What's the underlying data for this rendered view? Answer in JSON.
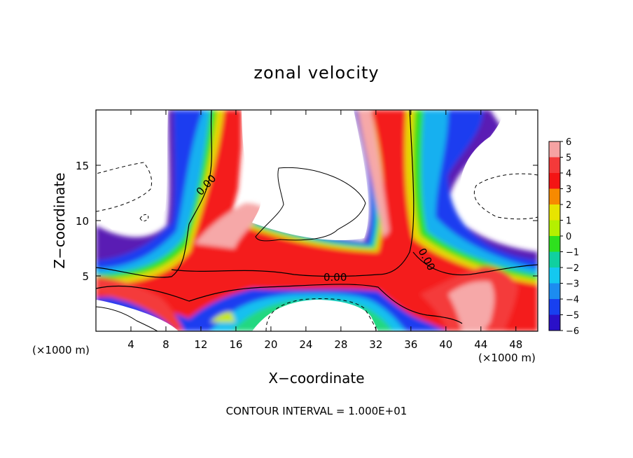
{
  "chart_data": {
    "type": "heatmap",
    "title": "zonal velocity",
    "xlabel": "X−coordinate",
    "ylabel": "Z−coordinate",
    "x_unit_left": "(×1000 m)",
    "x_unit_right": "(×1000 m)",
    "footer": "CONTOUR INTERVAL = 1.000E+01",
    "xlim": [
      0,
      50.5
    ],
    "ylim": [
      0,
      20
    ],
    "x_ticks": [
      4,
      8,
      12,
      16,
      20,
      24,
      28,
      32,
      36,
      40,
      44,
      48
    ],
    "x_tick_labels": [
      "4",
      "8",
      "12",
      "16",
      "20",
      "24",
      "28",
      "32",
      "36",
      "40",
      "44",
      "48"
    ],
    "y_ticks": [
      5,
      10,
      15
    ],
    "y_tick_labels": [
      "5",
      "10",
      "15"
    ],
    "contour_labels": [
      "0.00",
      "0.00",
      "0.00"
    ],
    "colorbar": {
      "levels": [
        6,
        5,
        4,
        3,
        2,
        1,
        0,
        -1,
        -2,
        -3,
        -4,
        -5,
        -6
      ],
      "labels": [
        "6",
        "5",
        "4",
        "3",
        "2",
        "1",
        "0",
        "−1",
        "−2",
        "−3",
        "−4",
        "−5",
        "−6"
      ],
      "colors": [
        "#f6a3a3",
        "#f43a3a",
        "#f41414",
        "#f78a00",
        "#e8e400",
        "#b4f000",
        "#2ee01e",
        "#10d0a0",
        "#14c8f0",
        "#1c8cf0",
        "#1840f0",
        "#2a10c8",
        "#6a1ab4"
      ]
    },
    "grid": false
  }
}
